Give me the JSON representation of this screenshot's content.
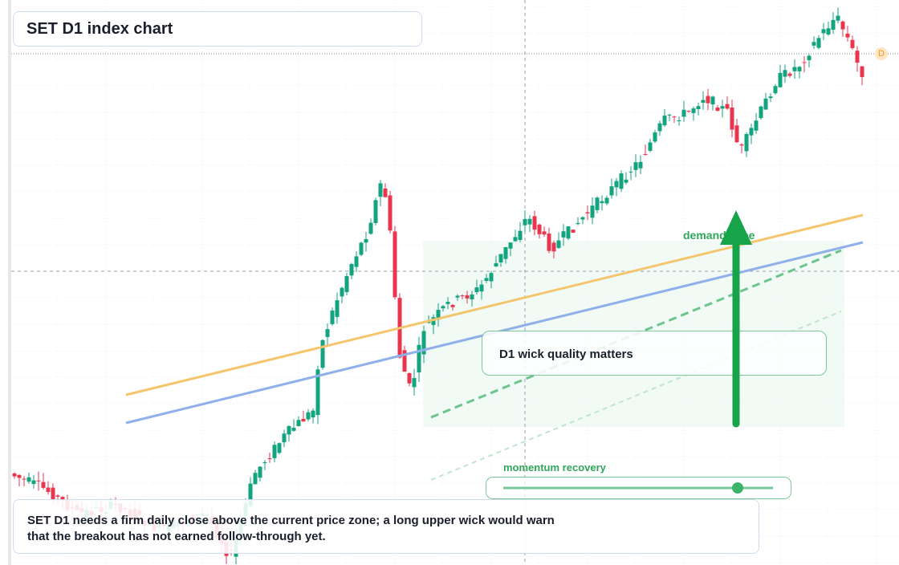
{
  "header": {
    "title": "SET D1 index chart"
  },
  "price_badge": "D",
  "zone_label": "demand zone",
  "callout": "D1 wick quality matters",
  "indicator": {
    "label": "momentum recovery"
  },
  "note": "SET D1 needs a firm daily close above the current price zone; a long upper wick would warn that the breakout has not earned follow-through yet."
}
